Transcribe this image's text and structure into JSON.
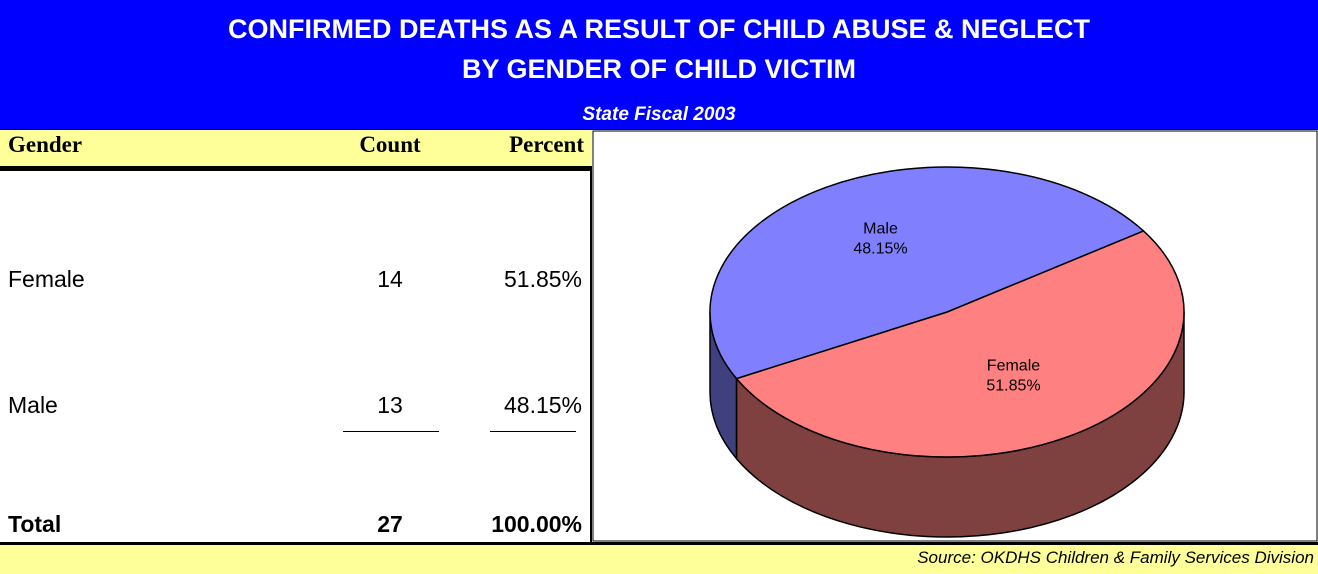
{
  "header": {
    "title": [
      "CONFIRMED DEATHS AS A RESULT OF CHILD ABUSE & NEGLECT",
      "BY GENDER OF CHILD VICTIM"
    ],
    "subtitle": "State Fiscal 2003"
  },
  "table": {
    "columns": [
      "Gender",
      "Count",
      "Percent"
    ],
    "rows": [
      [
        "Female",
        14,
        "51.85%"
      ],
      [
        "Male",
        13,
        "48.15%"
      ]
    ],
    "total": [
      "Total",
      27,
      "100.00%"
    ]
  },
  "chart_data": {
    "type": "pie",
    "categories": [
      "Female",
      "Male"
    ],
    "values": [
      51.85,
      48.15
    ],
    "value_labels": [
      "51.85%",
      "48.15%"
    ],
    "colors": [
      "#ff8080",
      "#8080ff"
    ],
    "three_d": true
  },
  "source": "Source:  OKDHS Children & Family Services Division"
}
